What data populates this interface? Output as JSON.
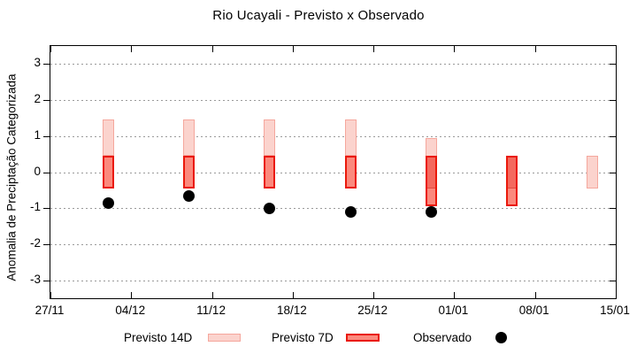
{
  "chart_data": {
    "type": "bar",
    "title": "Rio Ucayali - Previsto x Observado",
    "ylabel": "Anomalia de Preciptação Categorizada",
    "xlabel": "",
    "ylim": [
      -3.5,
      3.5
    ],
    "y_ticks": [
      3,
      2,
      1,
      0,
      -1,
      -2,
      -3
    ],
    "x_ticks": [
      {
        "label": "27/11",
        "day": 0
      },
      {
        "label": "04/12",
        "day": 7
      },
      {
        "label": "11/12",
        "day": 14
      },
      {
        "label": "18/12",
        "day": 21
      },
      {
        "label": "25/12",
        "day": 28
      },
      {
        "label": "01/01",
        "day": 35
      },
      {
        "label": "08/01",
        "day": 42
      },
      {
        "label": "15/01",
        "day": 49
      }
    ],
    "x_range_days": 49,
    "grid": "horizontal-dotted",
    "legend_position": "bottom",
    "groups": [
      {
        "date": "02/12",
        "day": 5,
        "previsto14": [
          0.45,
          1.45
        ],
        "previsto7": [
          -0.45,
          0.45
        ],
        "observado": -0.85
      },
      {
        "date": "09/12",
        "day": 12,
        "previsto14": [
          0.45,
          1.45
        ],
        "previsto7": [
          -0.45,
          0.45
        ],
        "observado": -0.65
      },
      {
        "date": "16/12",
        "day": 19,
        "previsto14": [
          0.45,
          1.45
        ],
        "previsto7": [
          -0.45,
          0.45
        ],
        "observado": -1.0
      },
      {
        "date": "23/12",
        "day": 26,
        "previsto14": [
          0.45,
          1.45
        ],
        "previsto7": [
          -0.45,
          0.45
        ],
        "observado": -1.1
      },
      {
        "date": "30/12",
        "day": 33,
        "previsto14": [
          -0.45,
          0.95
        ],
        "previsto7": [
          -0.95,
          0.45
        ],
        "observado": -1.1
      },
      {
        "date": "06/01",
        "day": 40,
        "previsto14": [
          -0.45,
          0.45
        ],
        "previsto7": [
          -0.95,
          0.45
        ],
        "observado": null
      },
      {
        "date": "13/01",
        "day": 47,
        "previsto14": [
          -0.45,
          0.45
        ],
        "previsto7": null,
        "observado": null
      }
    ],
    "legend": [
      {
        "label": "Previsto 14D",
        "marker": "box-light"
      },
      {
        "label": "Previsto 7D",
        "marker": "box-dark"
      },
      {
        "label": "Observado",
        "marker": "black-dot"
      }
    ],
    "colors": {
      "previsto14_fill": "#fbd3cd",
      "previsto14_border": "#f5a79d",
      "previsto7_fill": "#fb897d",
      "previsto7_border": "#ea190b",
      "overlap_fill": "#f4695e",
      "overlap_divider": "#e2493e",
      "observado": "#000000",
      "grid": "#9a9a9a",
      "frame": "#000000"
    }
  }
}
